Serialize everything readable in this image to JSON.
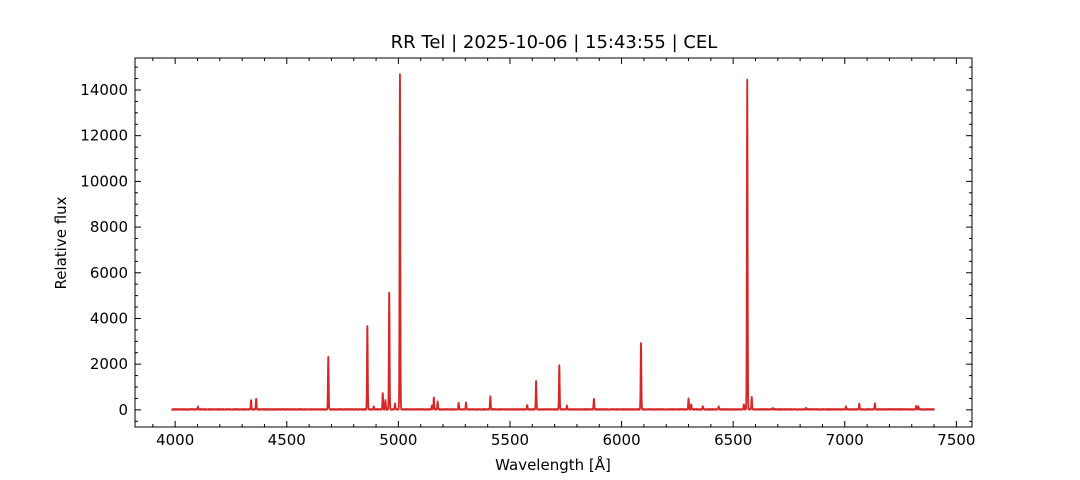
{
  "chart_data": {
    "type": "line",
    "title": "RR Tel | 2025-10-06 | 15:43:55 | CEL",
    "xlabel": "Wavelength [Å]",
    "ylabel": "Relative flux",
    "xlim": [
      3820,
      7570
    ],
    "ylim": [
      -750,
      15400
    ],
    "x_ticks": [
      4000,
      4500,
      5000,
      5500,
      6000,
      6500,
      7000,
      7500
    ],
    "y_ticks": [
      0,
      2000,
      4000,
      6000,
      8000,
      10000,
      12000,
      14000
    ],
    "x_minor_step": 100,
    "y_minor_step": 500,
    "grid": false,
    "line_color": "#d62728",
    "series": [
      {
        "x_range": [
          3985,
          7400
        ],
        "baseline": 20,
        "peaks": [
          {
            "x": 4102,
            "y": 140
          },
          {
            "x": 4340,
            "y": 440
          },
          {
            "x": 4363,
            "y": 480
          },
          {
            "x": 4686,
            "y": 2320
          },
          {
            "x": 4861,
            "y": 3680
          },
          {
            "x": 4890,
            "y": 150
          },
          {
            "x": 4930,
            "y": 720
          },
          {
            "x": 4942,
            "y": 420
          },
          {
            "x": 4959,
            "y": 5130
          },
          {
            "x": 4985,
            "y": 280
          },
          {
            "x": 5007,
            "y": 14700
          },
          {
            "x": 5150,
            "y": 180
          },
          {
            "x": 5159,
            "y": 540
          },
          {
            "x": 5176,
            "y": 380
          },
          {
            "x": 5270,
            "y": 300
          },
          {
            "x": 5303,
            "y": 310
          },
          {
            "x": 5412,
            "y": 580
          },
          {
            "x": 5577,
            "y": 200
          },
          {
            "x": 5617,
            "y": 1270
          },
          {
            "x": 5721,
            "y": 1960
          },
          {
            "x": 5755,
            "y": 180
          },
          {
            "x": 5876,
            "y": 490
          },
          {
            "x": 6087,
            "y": 2930
          },
          {
            "x": 6300,
            "y": 500
          },
          {
            "x": 6312,
            "y": 240
          },
          {
            "x": 6364,
            "y": 160
          },
          {
            "x": 6435,
            "y": 140
          },
          {
            "x": 6548,
            "y": 240
          },
          {
            "x": 6563,
            "y": 14470
          },
          {
            "x": 6583,
            "y": 560
          },
          {
            "x": 6678,
            "y": 80
          },
          {
            "x": 6827,
            "y": 80
          },
          {
            "x": 7005,
            "y": 160
          },
          {
            "x": 7065,
            "y": 270
          },
          {
            "x": 7135,
            "y": 290
          },
          {
            "x": 7320,
            "y": 180
          },
          {
            "x": 7330,
            "y": 150
          }
        ]
      }
    ]
  }
}
